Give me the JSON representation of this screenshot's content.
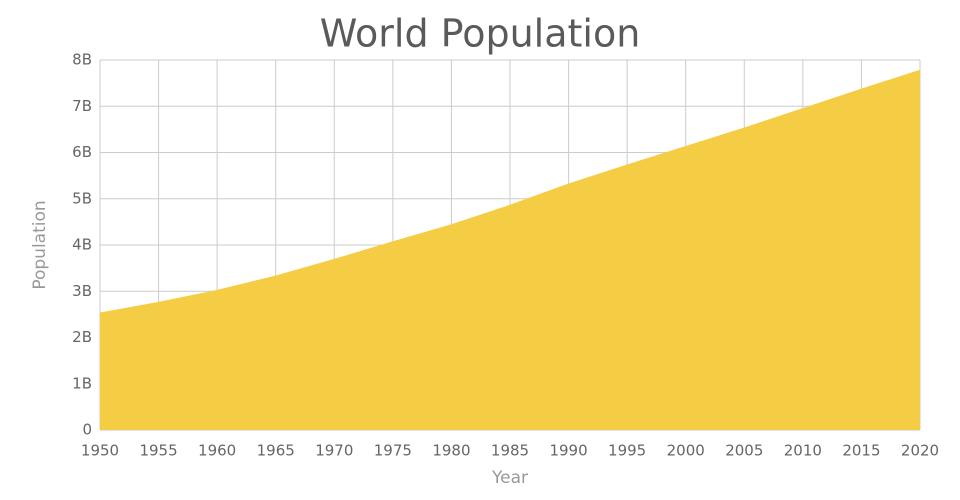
{
  "chart_data": {
    "type": "area",
    "title": "World Population",
    "x_label": "Year",
    "y_label": "Population",
    "x": [
      1950,
      1955,
      1960,
      1965,
      1970,
      1975,
      1980,
      1985,
      1990,
      1995,
      2000,
      2005,
      2010,
      2015,
      2020
    ],
    "series": [
      {
        "color": "#f4cd44",
        "values": [
          2540000000,
          2770000000,
          3030000000,
          3340000000,
          3700000000,
          4080000000,
          4450000000,
          4870000000,
          5330000000,
          5740000000,
          6140000000,
          6540000000,
          6960000000,
          7380000000,
          7790000000
        ]
      }
    ],
    "xlim": [
      1950,
      2020
    ],
    "xticks": [
      1950,
      1955,
      1960,
      1965,
      1970,
      1975,
      1980,
      1985,
      1990,
      1995,
      2000,
      2005,
      2010,
      2015,
      2020
    ],
    "ylim": [
      0,
      8000000000
    ],
    "yticks": [
      0,
      {
        "value": 1000000000,
        "label": "1B"
      },
      {
        "value": 2000000000,
        "label": "2B"
      },
      {
        "value": 3000000000,
        "label": "3B"
      },
      {
        "value": 4000000000,
        "label": "4B"
      },
      {
        "value": 5000000000,
        "label": "5B"
      },
      {
        "value": 6000000000,
        "label": "6B"
      },
      {
        "value": 7000000000,
        "label": "7B"
      },
      {
        "value": 8000000000,
        "label": "8B"
      }
    ],
    "grid": true
  }
}
